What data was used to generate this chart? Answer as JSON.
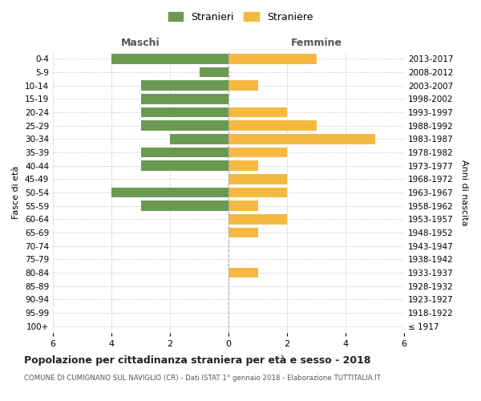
{
  "age_groups": [
    "100+",
    "95-99",
    "90-94",
    "85-89",
    "80-84",
    "75-79",
    "70-74",
    "65-69",
    "60-64",
    "55-59",
    "50-54",
    "45-49",
    "40-44",
    "35-39",
    "30-34",
    "25-29",
    "20-24",
    "15-19",
    "10-14",
    "5-9",
    "0-4"
  ],
  "birth_years": [
    "≤ 1917",
    "1918-1922",
    "1923-1927",
    "1928-1932",
    "1933-1937",
    "1938-1942",
    "1943-1947",
    "1948-1952",
    "1953-1957",
    "1958-1962",
    "1963-1967",
    "1968-1972",
    "1973-1977",
    "1978-1982",
    "1983-1987",
    "1988-1992",
    "1993-1997",
    "1998-2002",
    "2003-2007",
    "2008-2012",
    "2013-2017"
  ],
  "maschi": [
    0,
    0,
    0,
    0,
    0,
    0,
    0,
    0,
    0,
    3,
    4,
    0,
    3,
    3,
    2,
    3,
    3,
    3,
    3,
    1,
    4
  ],
  "femmine": [
    0,
    0,
    0,
    0,
    1,
    0,
    0,
    1,
    2,
    1,
    2,
    2,
    1,
    2,
    5,
    3,
    2,
    0,
    1,
    0,
    3
  ],
  "color_maschi": "#6a9a52",
  "color_femmine": "#f5b942",
  "title": "Popolazione per cittadinanza straniera per età e sesso - 2018",
  "subtitle": "COMUNE DI CUMIGNANO SUL NAVIGLIO (CR) - Dati ISTAT 1° gennaio 2018 - Elaborazione TUTTITALIA.IT",
  "xlabel_left": "Maschi",
  "xlabel_right": "Femmine",
  "ylabel_left": "Fasce di età",
  "ylabel_right": "Anni di nascita",
  "legend_stranieri": "Stranieri",
  "legend_straniere": "Straniere",
  "xlim": 6,
  "background_color": "#ffffff",
  "grid_color": "#cccccc"
}
